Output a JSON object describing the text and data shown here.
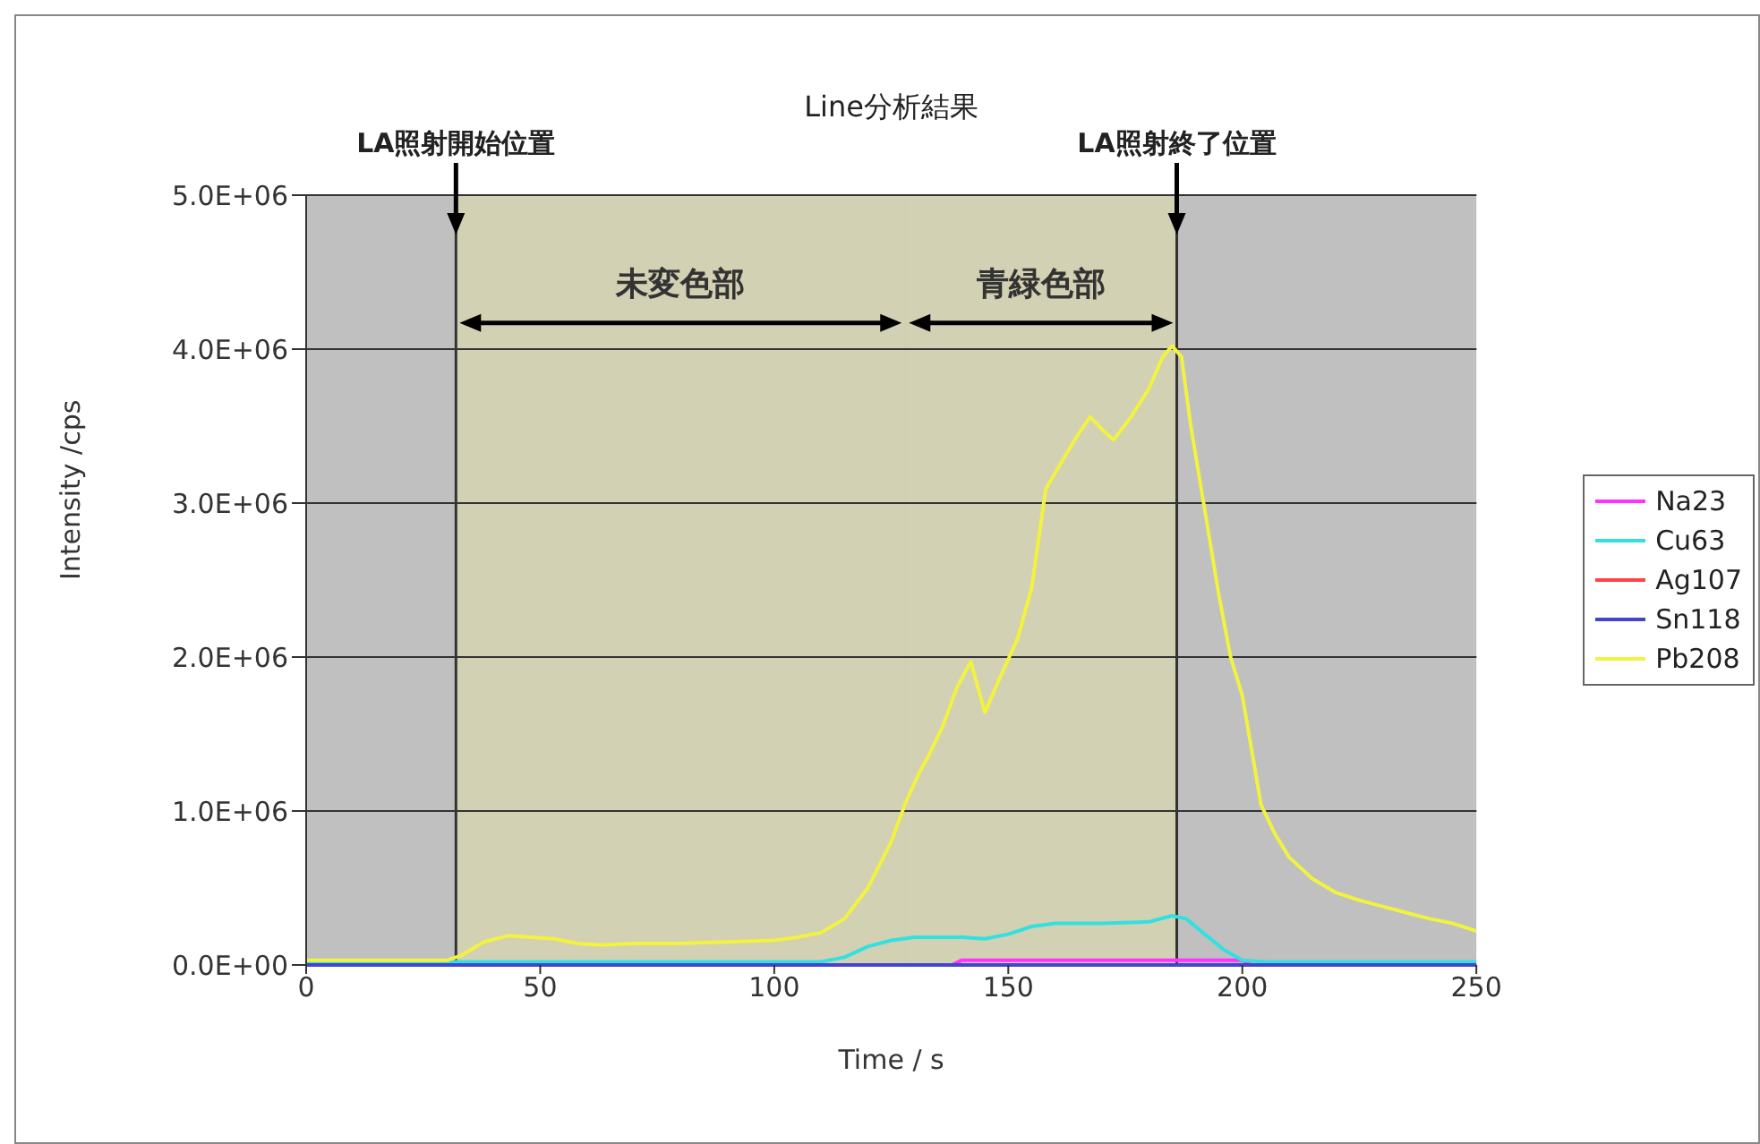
{
  "chart_data": {
    "type": "line",
    "title": "Line分析結果",
    "xlabel": "Time / s",
    "ylabel": "Intensity /cps",
    "xlim": [
      0,
      250
    ],
    "xticks": [
      0,
      50,
      100,
      150,
      200,
      250
    ],
    "ylim": [
      0,
      5000000
    ],
    "yticks": [
      {
        "value": 0,
        "label": "0.0E+00"
      },
      {
        "value": 1000000,
        "label": "1.0E+06"
      },
      {
        "value": 2000000,
        "label": "2.0E+06"
      },
      {
        "value": 3000000,
        "label": "3.0E+06"
      },
      {
        "value": 4000000,
        "label": "4.0E+06"
      },
      {
        "value": 5000000,
        "label": "5.0E+06"
      }
    ],
    "grid": "y",
    "legend": "right",
    "marker": "none",
    "line_style": "solid",
    "bands": [
      {
        "axis": "x",
        "from": 32,
        "to": 128,
        "label": "未変色部",
        "color": "#d3d1b3"
      },
      {
        "axis": "x",
        "from": 128,
        "to": 186,
        "label": "青緑色部",
        "color": "#d3d1b3"
      }
    ],
    "ref_lines": [
      {
        "axis": "x",
        "value": 32,
        "label": "LA照射開始位置",
        "color": "#333333"
      },
      {
        "axis": "x",
        "value": 186,
        "label": "LA照射終了位置",
        "color": "#333333"
      }
    ],
    "series": [
      {
        "name": "Na23",
        "color": "#ff33ff",
        "x": [
          138,
          140,
          200,
          202
        ],
        "values": [
          0,
          30000,
          30000,
          0
        ]
      },
      {
        "name": "Cu63",
        "color": "#33e0e0",
        "x": [
          0,
          100,
          110,
          115,
          120,
          125,
          130,
          140,
          145,
          150,
          155,
          160,
          170,
          180,
          185,
          188,
          192,
          196,
          200,
          205,
          210,
          250
        ],
        "values": [
          20000,
          20000,
          20000,
          50000,
          120000,
          160000,
          180000,
          180000,
          170000,
          200000,
          250000,
          270000,
          270000,
          280000,
          320000,
          300000,
          200000,
          100000,
          30000,
          20000,
          20000,
          20000
        ]
      },
      {
        "name": "Ag107",
        "color": "#ff4444"
      },
      {
        "name": "Sn118",
        "color": "#4444cc",
        "x": [
          0,
          50,
          100,
          150,
          200,
          250
        ],
        "values": [
          0,
          0,
          0,
          0,
          0,
          0
        ]
      },
      {
        "name": "Pb208",
        "color": "#f2f240",
        "x": [
          0,
          10,
          20,
          30,
          33,
          38,
          43,
          48,
          53,
          58,
          63,
          70,
          80,
          90,
          100,
          105,
          110,
          115,
          120,
          125,
          128,
          131,
          133,
          136,
          139,
          142,
          145,
          148,
          152,
          155,
          158,
          162,
          165,
          167.5,
          170,
          172.5,
          176,
          180,
          183,
          185,
          187,
          189,
          192.5,
          195,
          197.5,
          200,
          204,
          207,
          210,
          215,
          220,
          225,
          230,
          235,
          240,
          245,
          250
        ],
        "values": [
          30000,
          30000,
          30000,
          30000,
          60000,
          150000,
          190000,
          180000,
          170000,
          140000,
          130000,
          140000,
          140000,
          150000,
          160000,
          180000,
          210000,
          300000,
          500000,
          800000,
          1050000,
          1250000,
          1360000,
          1550000,
          1800000,
          1970000,
          1640000,
          1850000,
          2120000,
          2450000,
          3090000,
          3300000,
          3450000,
          3560000,
          3480000,
          3410000,
          3550000,
          3740000,
          3950000,
          4020000,
          3950000,
          3500000,
          2860000,
          2400000,
          2000000,
          1750000,
          1040000,
          850000,
          700000,
          560000,
          470000,
          420000,
          380000,
          340000,
          300000,
          270000,
          220000
        ]
      }
    ]
  }
}
